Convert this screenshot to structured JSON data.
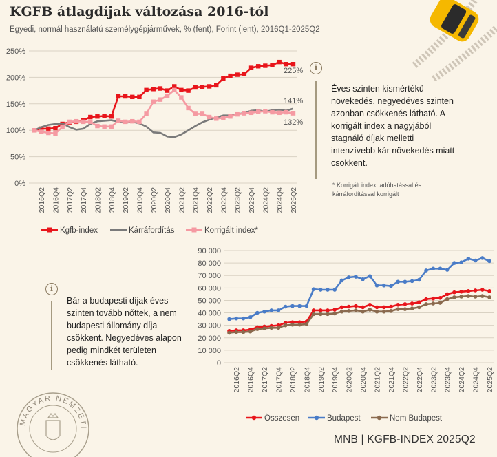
{
  "header": {
    "title": "KGFB átlagdíjak változása 2016-tól",
    "subtitle": "Egyedi, normál használatú személygépjárművek, % (fent), Forint (lent), 2016Q1-2025Q2"
  },
  "info": {
    "top_text": "Éves szinten kismértékű növekedés, negyedéves szinten azonban csökkenés látható. A korrigált index a nagyjából stagnáló díjak melletti intenzívebb kár növekedés miatt csökkent.",
    "footnote": "* Korrigált index: adóhatással és kárráfordítással korrigált",
    "bottom_text": "Bár a budapesti díjak éves szinten tovább nőttek, a nem budapesti állomány díja csökkent. Negyedéves alapon pedig mindkét területen csökkenés látható."
  },
  "footer": {
    "text": "MNB | KGFB-INDEX 2025Q2"
  },
  "logo": {
    "text": "MAGYAR NEMZETI BANK"
  },
  "icons": [
    "info-icon",
    "car-icon",
    "mnb-seal-icon"
  ],
  "chart_data": [
    {
      "type": "line",
      "x": [
        "2016Q1",
        "2016Q2",
        "2016Q3",
        "2016Q4",
        "2017Q1",
        "2017Q2",
        "2017Q3",
        "2017Q4",
        "2018Q1",
        "2018Q2",
        "2018Q3",
        "2018Q4",
        "2019Q1",
        "2019Q2",
        "2019Q3",
        "2019Q4",
        "2020Q1",
        "2020Q2",
        "2020Q3",
        "2020Q4",
        "2021Q1",
        "2021Q2",
        "2021Q3",
        "2021Q4",
        "2022Q1",
        "2022Q2",
        "2022Q3",
        "2022Q4",
        "2023Q1",
        "2023Q2",
        "2023Q3",
        "2023Q4",
        "2024Q1",
        "2024Q2",
        "2024Q3",
        "2024Q4",
        "2025Q1",
        "2025Q2"
      ],
      "tick_labels": [
        "2016Q2",
        "2016Q4",
        "2017Q2",
        "2017Q4",
        "2018Q2",
        "2018Q4",
        "2019Q2",
        "2019Q4",
        "2020Q2",
        "2020Q4",
        "2021Q2",
        "2021Q4",
        "2022Q2",
        "2022Q4",
        "2023Q2",
        "2023Q4",
        "2024Q2",
        "2024Q4",
        "2025Q2"
      ],
      "y_ticks": [
        "0%",
        "50%",
        "100%",
        "150%",
        "200%",
        "250%"
      ],
      "ylim": [
        0,
        250
      ],
      "grid": true,
      "legend_position": "bottom",
      "series": [
        {
          "name": "Kgfb-index",
          "color": "#e8151b",
          "marker": "square",
          "values": [
            100,
            103,
            103,
            104,
            112,
            115,
            116,
            119,
            125,
            126,
            127,
            126,
            164,
            164,
            163,
            163,
            176,
            178,
            179,
            175,
            183,
            176,
            175,
            181,
            182,
            183,
            185,
            198,
            203,
            205,
            206,
            218,
            221,
            222,
            223,
            229,
            225,
            225
          ]
        },
        {
          "name": "Kárráfordítás",
          "color": "#7a7a7a",
          "marker": "none",
          "values": [
            100,
            106,
            110,
            112,
            113,
            106,
            101,
            103,
            112,
            117,
            118,
            119,
            116,
            114,
            116,
            113,
            107,
            96,
            95,
            88,
            87,
            92,
            100,
            108,
            115,
            120,
            124,
            128,
            128,
            130,
            133,
            137,
            138,
            135,
            138,
            139,
            137,
            141
          ]
        },
        {
          "name": "Korrigált index*",
          "color": "#f59aa2",
          "marker": "square",
          "values": [
            100,
            97,
            95,
            94,
            106,
            116,
            117,
            116,
            116,
            108,
            107,
            107,
            118,
            116,
            117,
            116,
            131,
            154,
            158,
            165,
            176,
            162,
            142,
            131,
            131,
            125,
            122,
            123,
            126,
            130,
            132,
            133,
            135,
            136,
            134,
            133,
            134,
            132
          ]
        }
      ],
      "end_labels": [
        "225%",
        "141%",
        "132%"
      ]
    },
    {
      "type": "line",
      "x": [
        "2016Q1",
        "2016Q2",
        "2016Q3",
        "2016Q4",
        "2017Q1",
        "2017Q2",
        "2017Q3",
        "2017Q4",
        "2018Q1",
        "2018Q2",
        "2018Q3",
        "2018Q4",
        "2019Q1",
        "2019Q2",
        "2019Q3",
        "2019Q4",
        "2020Q1",
        "2020Q2",
        "2020Q3",
        "2020Q4",
        "2021Q1",
        "2021Q2",
        "2021Q3",
        "2021Q4",
        "2022Q1",
        "2022Q2",
        "2022Q3",
        "2022Q4",
        "2023Q1",
        "2023Q2",
        "2023Q3",
        "2023Q4",
        "2024Q1",
        "2024Q2",
        "2024Q3",
        "2024Q4",
        "2025Q1",
        "2025Q2"
      ],
      "tick_labels": [
        "2016Q2",
        "2016Q4",
        "2017Q2",
        "2017Q4",
        "2018Q2",
        "2018Q4",
        "2019Q2",
        "2019Q4",
        "2020Q2",
        "2020Q4",
        "2021Q2",
        "2021Q4",
        "2022Q2",
        "2022Q4",
        "2023Q2",
        "2023Q4",
        "2024Q2",
        "2024Q4",
        "2025Q2"
      ],
      "y_ticks": [
        "0",
        "10 000",
        "20 000",
        "30 000",
        "40 000",
        "50 000",
        "60 000",
        "70 000",
        "80 000",
        "90 000"
      ],
      "ylim": [
        0,
        90000
      ],
      "grid": true,
      "legend_position": "bottom",
      "series": [
        {
          "name": "Összesen",
          "color": "#e8151b",
          "marker": "circle",
          "values": [
            25500,
            26000,
            26000,
            26500,
            28500,
            29000,
            29500,
            30000,
            32000,
            32500,
            32500,
            33000,
            42000,
            42000,
            42000,
            42500,
            44500,
            45000,
            45500,
            44500,
            46500,
            44500,
            44500,
            45000,
            46500,
            47000,
            47500,
            48500,
            51000,
            51500,
            52000,
            55000,
            56500,
            57000,
            57500,
            58000,
            58500,
            57500
          ]
        },
        {
          "name": "Budapest",
          "color": "#4a7cc7",
          "marker": "circle",
          "values": [
            35000,
            35500,
            35500,
            36500,
            40000,
            41000,
            42000,
            42000,
            45000,
            45500,
            45500,
            45500,
            59000,
            58500,
            58500,
            58500,
            66000,
            68500,
            69000,
            67000,
            69500,
            62000,
            62000,
            61500,
            65000,
            65000,
            65500,
            66500,
            74000,
            75500,
            75500,
            74500,
            80000,
            80500,
            83500,
            82000,
            84000,
            81500
          ]
        },
        {
          "name": "Nem Budapest",
          "color": "#8a6a4e",
          "marker": "circle",
          "values": [
            24000,
            24500,
            24500,
            25000,
            27000,
            27500,
            28000,
            28000,
            30000,
            30500,
            30500,
            31000,
            39000,
            39000,
            39000,
            39500,
            41000,
            41500,
            42000,
            41000,
            42500,
            41000,
            41000,
            41500,
            43000,
            43000,
            43500,
            44500,
            47000,
            47500,
            48000,
            51000,
            52500,
            53000,
            53500,
            53000,
            53500,
            52500
          ]
        }
      ]
    }
  ]
}
